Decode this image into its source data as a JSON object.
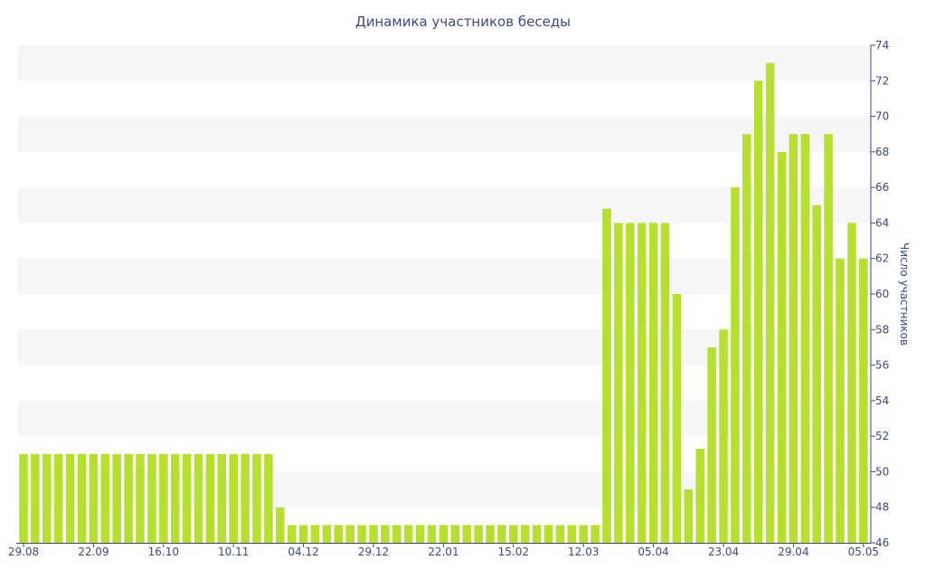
{
  "chart_data": {
    "type": "bar",
    "title": "Динамика участников беседы",
    "ylabel": "Число участников",
    "xlabel": "",
    "ylim": [
      46,
      74
    ],
    "y_ticks": [
      46,
      48,
      50,
      52,
      54,
      56,
      58,
      60,
      62,
      64,
      66,
      68,
      70,
      72,
      74
    ],
    "y_axis_position": "right",
    "grid": "horizontal-bands",
    "x_tick_labels": [
      {
        "index": 0,
        "label": "29.08"
      },
      {
        "index": 6,
        "label": "22.09"
      },
      {
        "index": 12,
        "label": "16.10"
      },
      {
        "index": 18,
        "label": "10.11"
      },
      {
        "index": 24,
        "label": "04.12"
      },
      {
        "index": 30,
        "label": "29.12"
      },
      {
        "index": 36,
        "label": "22.01"
      },
      {
        "index": 42,
        "label": "15.02"
      },
      {
        "index": 48,
        "label": "12.03"
      },
      {
        "index": 54,
        "label": "05.04"
      },
      {
        "index": 60,
        "label": "23.04"
      },
      {
        "index": 66,
        "label": "29.04"
      },
      {
        "index": 72,
        "label": "05.05"
      }
    ],
    "series": [
      {
        "color": "#b5e02e",
        "values": [
          51,
          51,
          51,
          51,
          51,
          51,
          51,
          51,
          51,
          51,
          51,
          51,
          51,
          51,
          51,
          51,
          51,
          51,
          51,
          51,
          51,
          51,
          48,
          47,
          47,
          47,
          47,
          47,
          47,
          47,
          47,
          47,
          47,
          47,
          47,
          47,
          47,
          47,
          47,
          47,
          47,
          47,
          47,
          47,
          47,
          47,
          47,
          47,
          47,
          47,
          64.8,
          64,
          64,
          64,
          64,
          64,
          60,
          49,
          51.3,
          57,
          58,
          66,
          69,
          72,
          73,
          68,
          69,
          69,
          65,
          69,
          62,
          64,
          62
        ]
      }
    ]
  }
}
